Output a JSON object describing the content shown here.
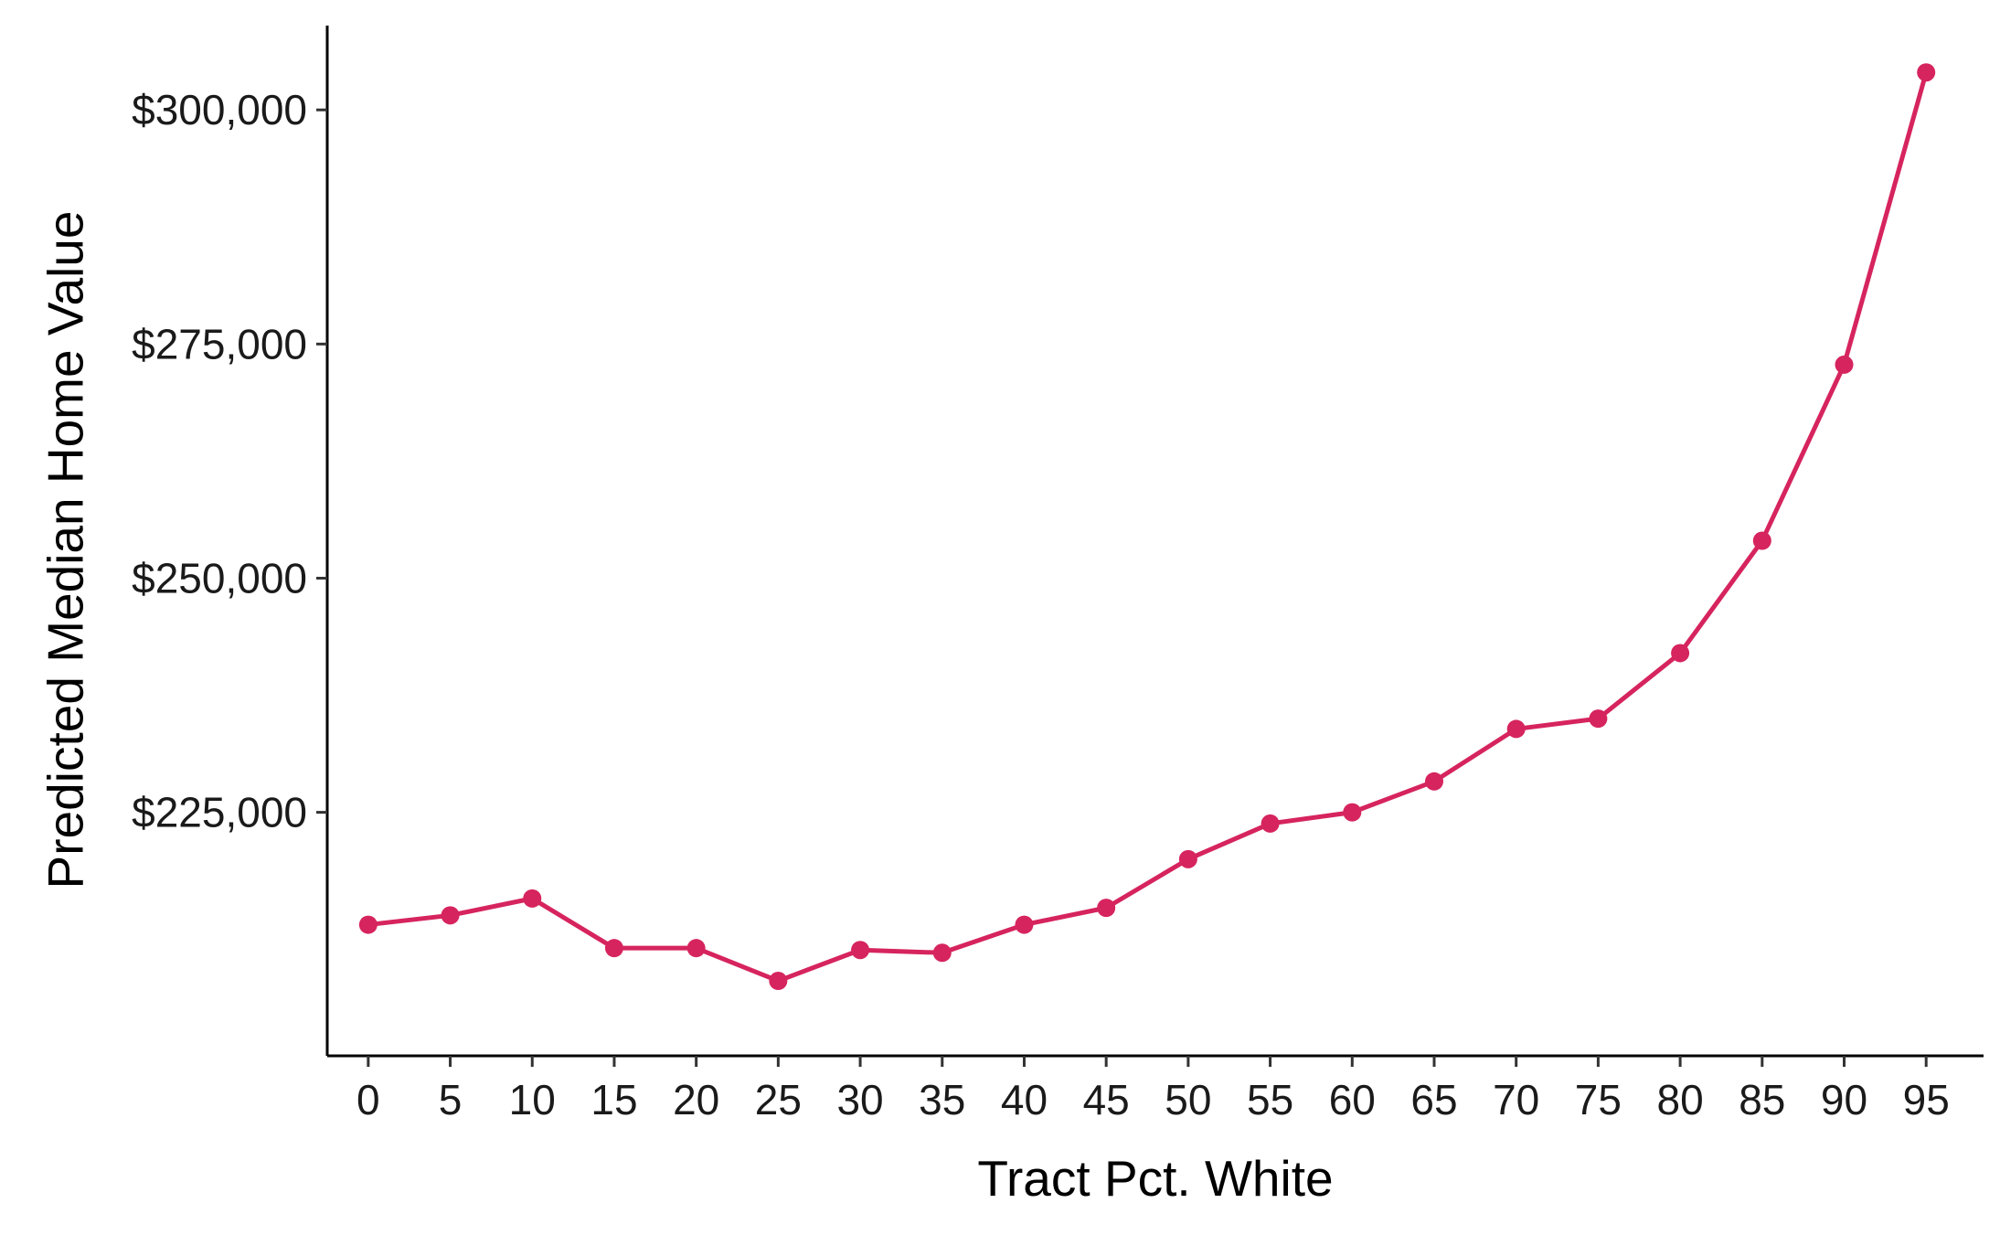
{
  "chart_data": {
    "type": "line",
    "title": "",
    "xlabel": "Tract Pct. White",
    "ylabel": "Predicted Median Home Value",
    "x": [
      0,
      5,
      10,
      15,
      20,
      25,
      30,
      35,
      40,
      45,
      50,
      55,
      60,
      65,
      70,
      75,
      80,
      85,
      90,
      95
    ],
    "series": [
      {
        "values": [
          213000,
          214000,
          215800,
          210500,
          210500,
          207000,
          210300,
          210000,
          213000,
          214800,
          220000,
          223800,
          225000,
          228300,
          233900,
          235000,
          242000,
          254000,
          272800,
          304000
        ]
      }
    ],
    "xlim": [
      -2.5,
      98.5
    ],
    "ylim": [
      199000,
      309000
    ],
    "x_ticks": [
      0,
      5,
      10,
      15,
      20,
      25,
      30,
      35,
      40,
      45,
      50,
      55,
      60,
      65,
      70,
      75,
      80,
      85,
      90,
      95
    ],
    "x_tick_labels": [
      "0",
      "5",
      "10",
      "15",
      "20",
      "25",
      "30",
      "35",
      "40",
      "45",
      "50",
      "55",
      "60",
      "65",
      "70",
      "75",
      "80",
      "85",
      "90",
      "95"
    ],
    "y_ticks": [
      225000,
      250000,
      275000,
      300000
    ],
    "y_tick_labels": [
      "$225,000",
      "$250,000",
      "$275,000",
      "$300,000"
    ],
    "grid": false,
    "legend": "none",
    "line_color": "#d6245e"
  }
}
